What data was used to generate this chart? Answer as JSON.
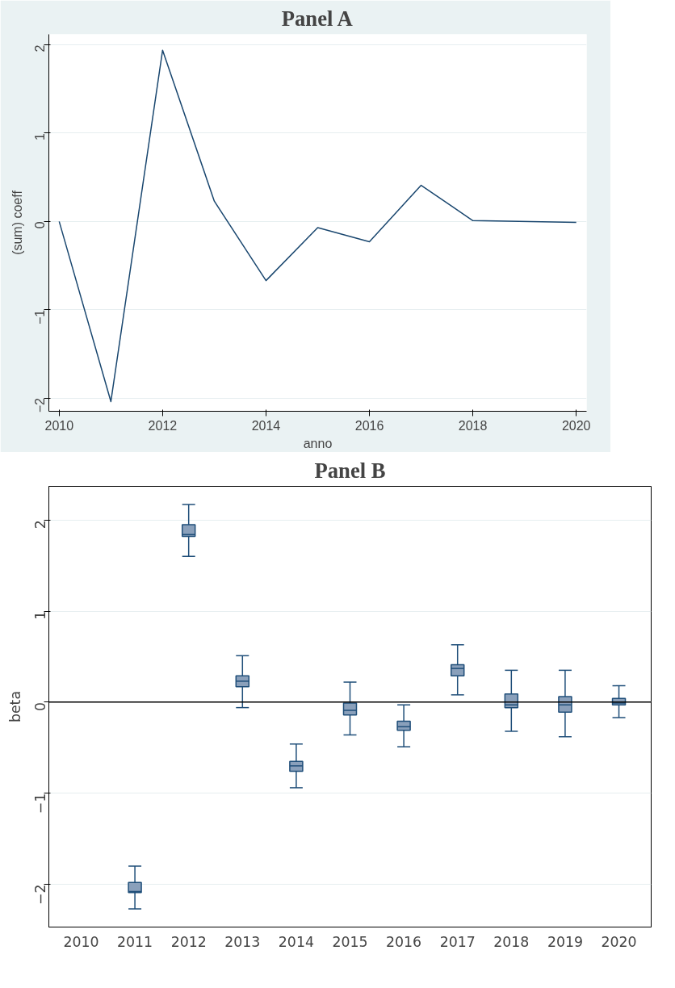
{
  "chart_data": [
    {
      "type": "line",
      "title": "Panel A",
      "xlabel": "anno",
      "ylabel": "(sum) coeff",
      "x": [
        2010,
        2011,
        2012,
        2013,
        2014,
        2015,
        2016,
        2017,
        2018,
        2020
      ],
      "series": [
        {
          "color": "#1a476f",
          "values": [
            0,
            -2.04,
            1.94,
            0.23,
            -0.67,
            -0.07,
            -0.23,
            0.41,
            0.01,
            -0.01
          ]
        }
      ],
      "xlim": [
        2009.8,
        2020.2
      ],
      "xticks": [
        2010,
        2012,
        2014,
        2016,
        2018,
        2020
      ],
      "ylim": [
        -2.15,
        2.12
      ],
      "yticks": [
        -2,
        -1,
        0,
        1,
        2
      ],
      "grid": "y",
      "line_style": "solid",
      "marker": "none"
    },
    {
      "type": "box",
      "title": "Panel B",
      "ylabel": "beta",
      "categories": [
        "2010",
        "2011",
        "2012",
        "2013",
        "2014",
        "2015",
        "2016",
        "2017",
        "2018",
        "2019",
        "2020"
      ],
      "series": [
        {
          "color": "#8aa0bb",
          "boxes": [
            null,
            {
              "low": -2.27,
              "q1": -2.09,
              "median": -2.08,
              "q3": -1.98,
              "high": -1.8
            },
            {
              "low": 1.6,
              "q1": 1.82,
              "median": 1.84,
              "q3": 1.95,
              "high": 2.17
            },
            {
              "low": -0.06,
              "q1": 0.17,
              "median": 0.23,
              "q3": 0.29,
              "high": 0.51
            },
            {
              "low": -0.94,
              "q1": -0.76,
              "median": -0.7,
              "q3": -0.65,
              "high": -0.46
            },
            {
              "low": -0.36,
              "q1": -0.14,
              "median": -0.09,
              "q3": -0.01,
              "high": 0.22
            },
            {
              "low": -0.49,
              "q1": -0.31,
              "median": -0.27,
              "q3": -0.21,
              "high": -0.03
            },
            {
              "low": 0.08,
              "q1": 0.29,
              "median": 0.37,
              "q3": 0.41,
              "high": 0.63
            },
            {
              "low": -0.32,
              "q1": -0.06,
              "median": -0.03,
              "q3": 0.09,
              "high": 0.35
            },
            {
              "low": -0.38,
              "q1": -0.11,
              "median": -0.03,
              "q3": 0.06,
              "high": 0.35
            },
            {
              "low": -0.17,
              "q1": -0.03,
              "median": -0.01,
              "q3": 0.04,
              "high": 0.18
            }
          ]
        }
      ],
      "ylim": [
        -2.47,
        2.37
      ],
      "yticks": [
        -2,
        -1,
        0,
        1,
        2
      ],
      "grid": "y",
      "ref_lines": [
        {
          "axis": "y",
          "value": 0,
          "color": "#000000"
        }
      ]
    }
  ]
}
